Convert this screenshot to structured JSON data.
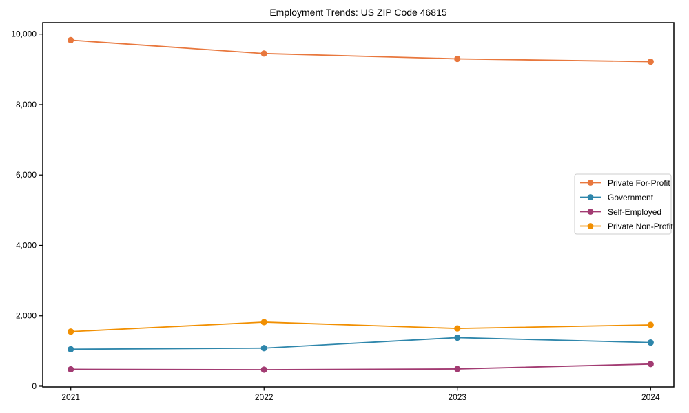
{
  "page": {
    "background_color": "#ffffff"
  },
  "chart_data": {
    "type": "line",
    "title": "Employment Trends: US ZIP Code 46815",
    "xlabel": "",
    "ylabel": "",
    "x": [
      "2021",
      "2022",
      "2023",
      "2024"
    ],
    "series": [
      {
        "name": "Private For-Profit",
        "color": "#e8773d",
        "values": [
          9830,
          9450,
          9300,
          9220
        ]
      },
      {
        "name": "Government",
        "color": "#2e86ab",
        "values": [
          1050,
          1080,
          1380,
          1240
        ]
      },
      {
        "name": "Self-Employed",
        "color": "#a23b72",
        "values": [
          480,
          470,
          490,
          630
        ]
      },
      {
        "name": "Private Non-Profit",
        "color": "#f18f01",
        "values": [
          1550,
          1820,
          1640,
          1740
        ]
      }
    ],
    "ylim": [
      0,
      10350
    ],
    "yticks": [
      0,
      2000,
      4000,
      6000,
      8000,
      10000
    ],
    "ytick_labels": [
      "0",
      "2,000",
      "4,000",
      "6,000",
      "8,000",
      "10,000"
    ],
    "grid": false,
    "legend_position": "middle-right",
    "marker": "circle",
    "axes_color": "#000000",
    "legend_border_color": "#cccccc"
  }
}
